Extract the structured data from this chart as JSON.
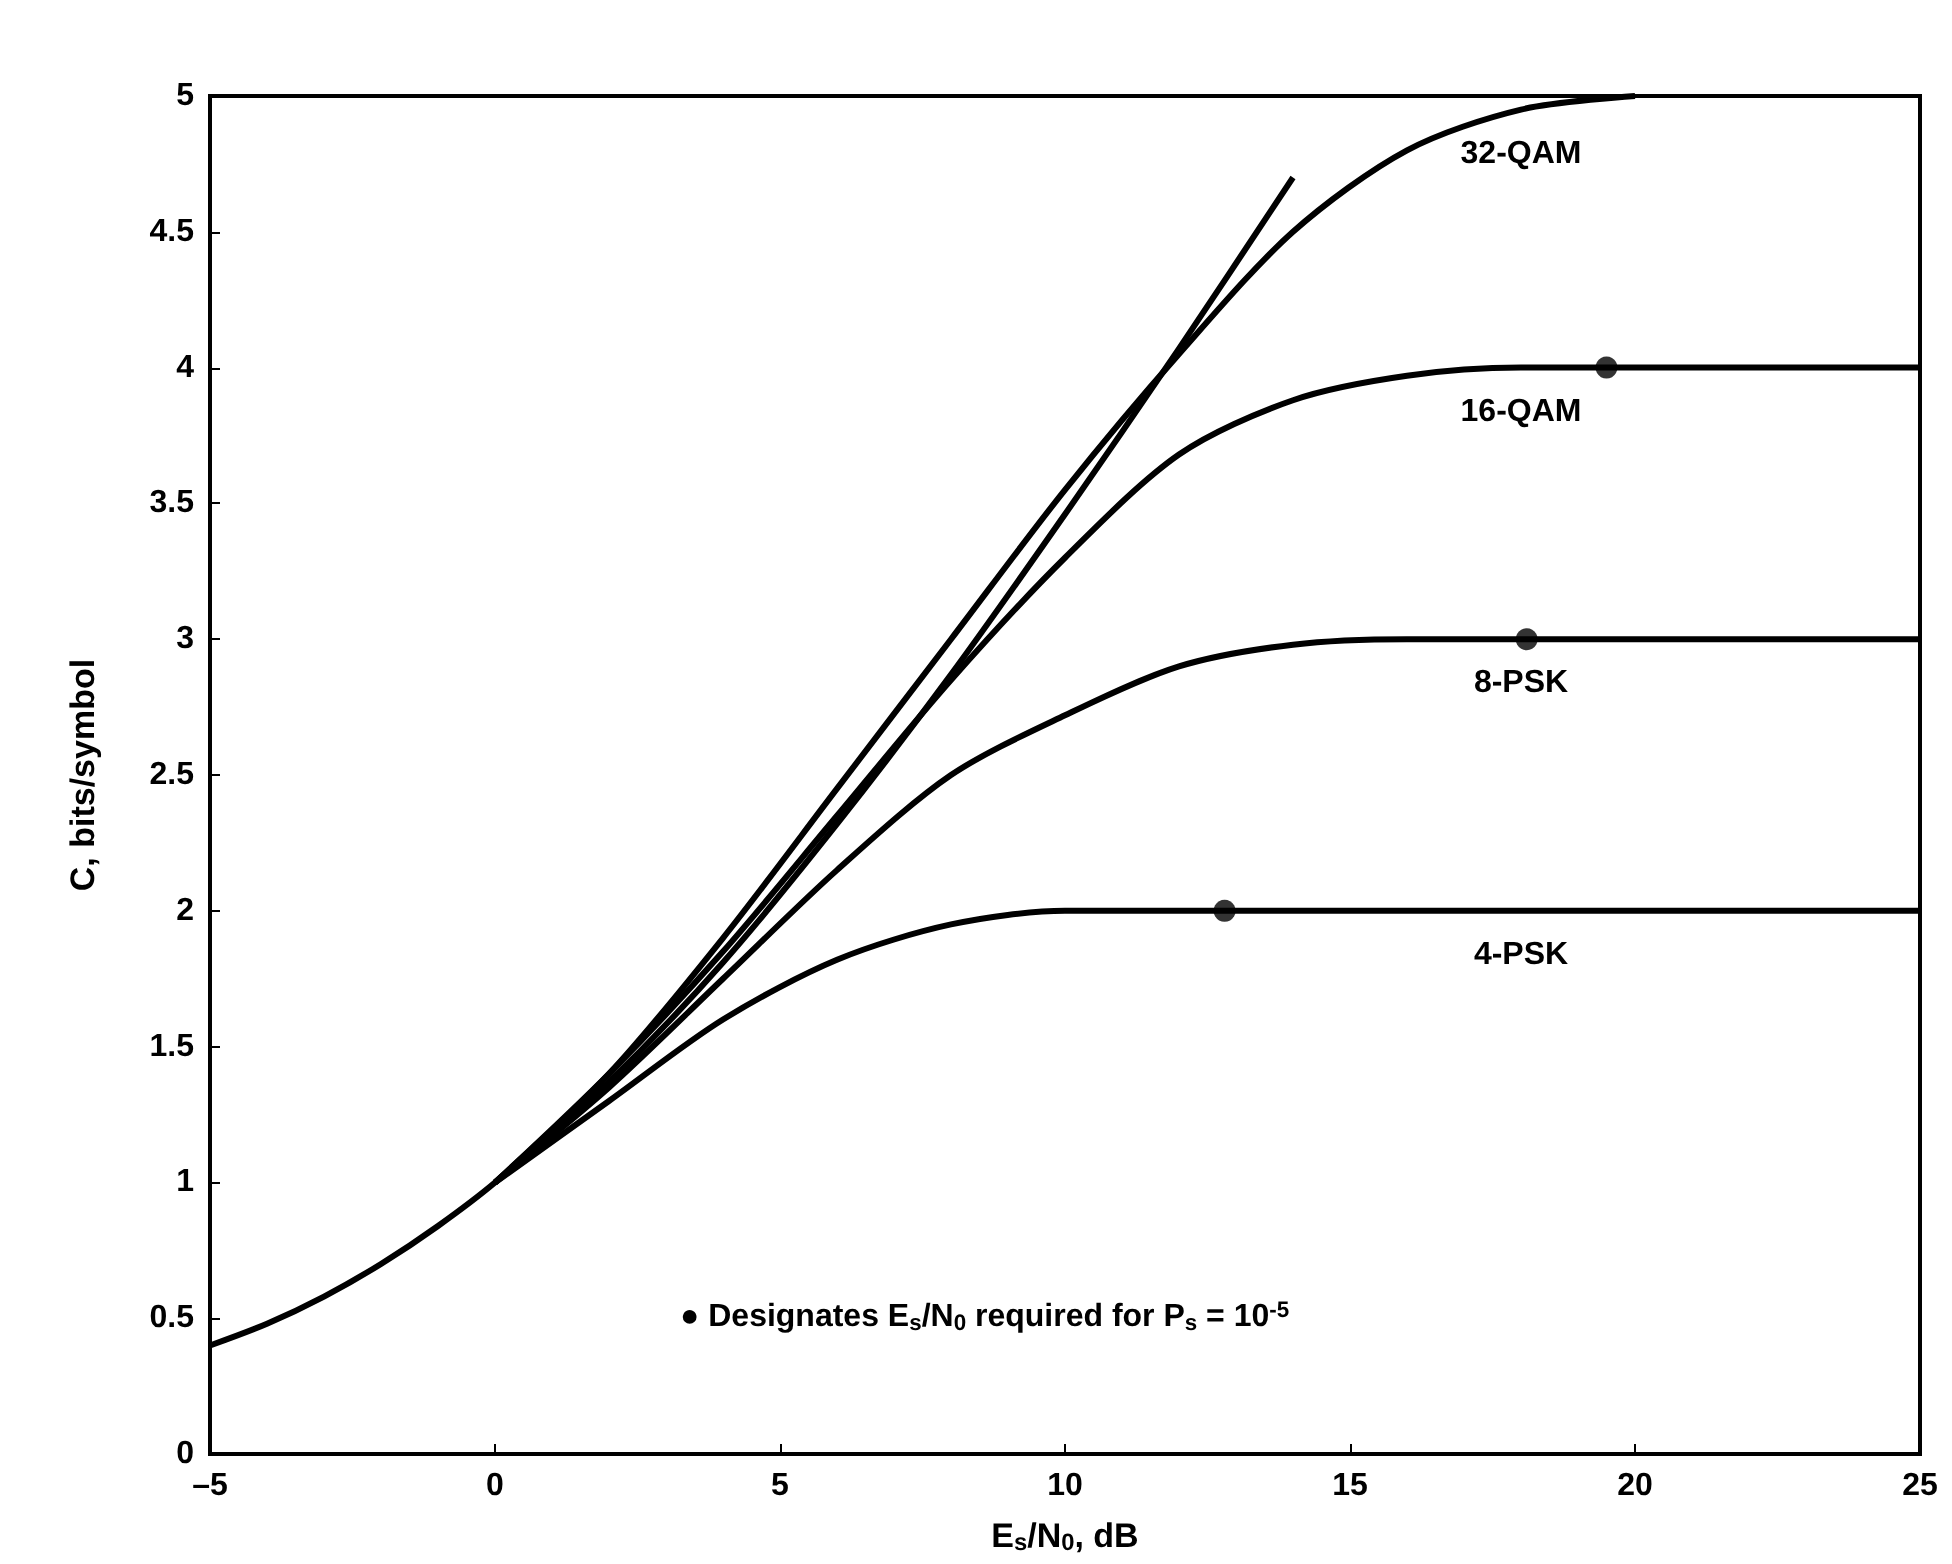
{
  "chart_data": {
    "type": "line",
    "xlabel": "E$_{s}$/N$_{0}$, dB",
    "ylabel": "C, bits/symbol",
    "xlim": [
      -5,
      25
    ],
    "xticks": [
      {
        "value": -5,
        "label": "–5"
      },
      0,
      5,
      10,
      15,
      20,
      25
    ],
    "ylim": [
      0,
      5
    ],
    "yticks": [
      0,
      0.5,
      1,
      1.5,
      2,
      2.5,
      3,
      3.5,
      4,
      4.5,
      5
    ],
    "grid": false,
    "legend": false,
    "marker": "none",
    "line_style": "solid",
    "series": [
      {
        "color": "#000000",
        "x": [
          -5,
          -4,
          -3,
          -2,
          -1,
          0,
          2,
          4,
          6,
          8,
          10,
          12,
          14
        ],
        "values": [
          0.4,
          0.48,
          0.58,
          0.7,
          0.84,
          1,
          1.37,
          1.81,
          2.32,
          2.87,
          3.46,
          4.07,
          4.7
        ]
      },
      {
        "name": "32-QAM",
        "color": "#000000",
        "x": [
          0,
          2,
          4,
          6,
          8,
          10,
          12,
          14,
          16,
          18,
          20
        ],
        "values": [
          1,
          1.4,
          1.9,
          2.45,
          3.0,
          3.55,
          4.05,
          4.5,
          4.8,
          4.95,
          5
        ]
      },
      {
        "name": "16-QAM",
        "color": "#000000",
        "x": [
          0,
          2,
          4,
          6,
          8,
          10,
          12,
          14,
          16,
          18,
          25
        ],
        "values": [
          1,
          1.4,
          1.85,
          2.35,
          2.85,
          3.3,
          3.68,
          3.88,
          3.97,
          4,
          4
        ]
      },
      {
        "name": "8-PSK",
        "color": "#000000",
        "x": [
          0,
          2,
          4,
          6,
          8,
          10,
          12,
          14,
          16,
          18,
          25
        ],
        "values": [
          1,
          1.35,
          1.75,
          2.15,
          2.5,
          2.72,
          2.9,
          2.98,
          3,
          3,
          3
        ]
      },
      {
        "name": "4-PSK",
        "color": "#000000",
        "x": [
          0,
          2,
          4,
          6,
          8,
          10,
          12,
          14,
          16,
          18,
          25
        ],
        "values": [
          1,
          1.3,
          1.6,
          1.82,
          1.95,
          2,
          2,
          2,
          2,
          2,
          2
        ]
      },
      {
        "type": "scatter",
        "marker": "circle",
        "color": "#000000",
        "x": [
          12.8,
          18.1,
          19.5
        ],
        "values": [
          2,
          3,
          4
        ]
      }
    ],
    "annotations": [
      "● Designates E$_{s}$/N$_{0}$ required for P$_{s}$ = 10$^{-5}$"
    ]
  }
}
